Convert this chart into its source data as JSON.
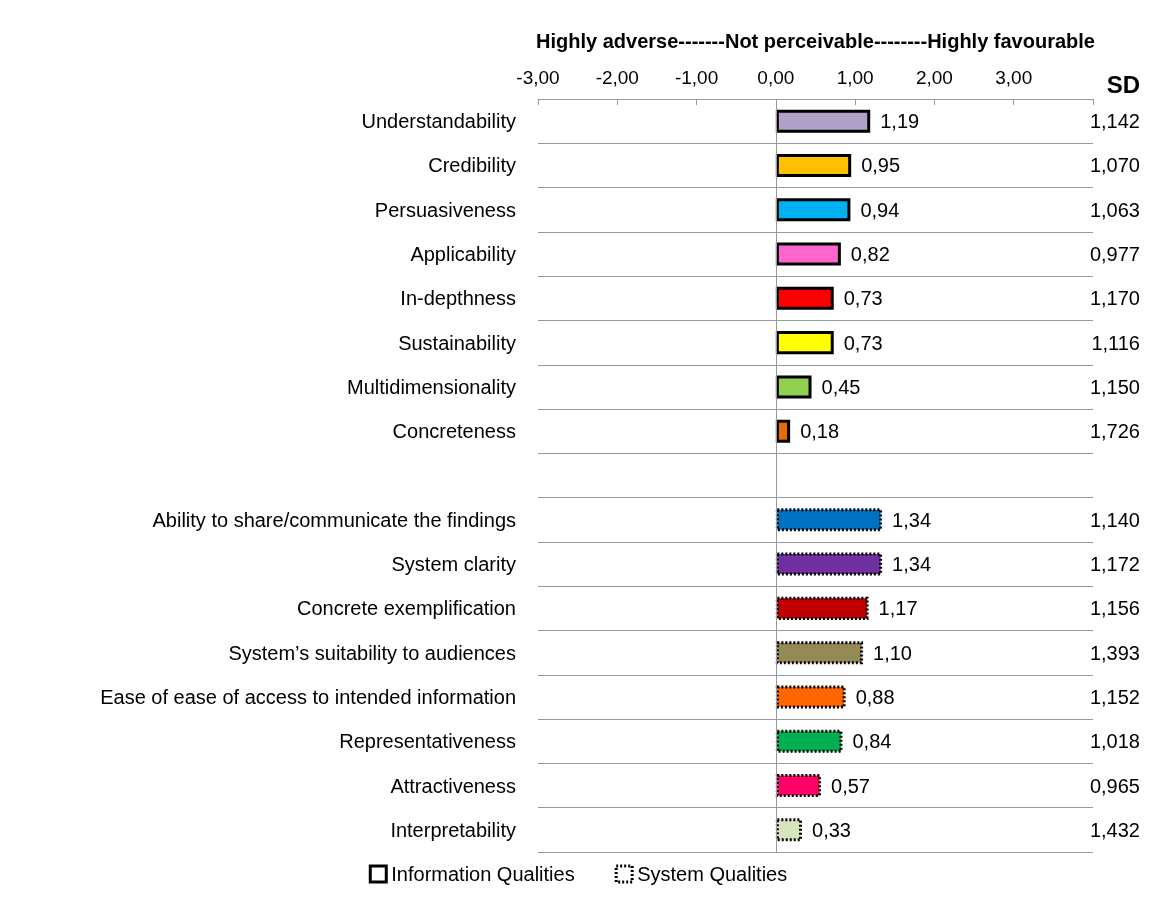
{
  "chart_data": {
    "type": "bar",
    "orientation": "horizontal",
    "xlabel": "Highly adverse-------Not perceivable--------Highly favourable",
    "categories": [
      "Understandability",
      "Credibility",
      "Persuasiveness",
      "Applicability",
      "In-depthness",
      "Sustainability",
      "Multidimensionality",
      "Concreteness",
      null,
      "Ability to share/communicate the findings",
      "System clarity",
      "Concrete exemplification",
      "System’s suitability to audiences",
      "Ease of ease of access to intended information",
      "Representativeness",
      "Attractiveness",
      "Interpretability"
    ],
    "series": [
      {
        "name": "Information Qualities",
        "line_style": "solid",
        "values": [
          1.19,
          0.95,
          0.94,
          0.82,
          0.73,
          0.73,
          0.45,
          0.18,
          null,
          null,
          null,
          null,
          null,
          null,
          null,
          null,
          null
        ],
        "value_labels": [
          "1,19",
          "0,95",
          "0,94",
          "0,82",
          "0,73",
          "0,73",
          "0,45",
          "0,18",
          null,
          null,
          null,
          null,
          null,
          null,
          null,
          null,
          null
        ],
        "colors": [
          "#b1a0c7",
          "#ffc000",
          "#00b0f0",
          "#ff66cc",
          "#ff0000",
          "#ffff00",
          "#92d050",
          "#e26b0a",
          null,
          null,
          null,
          null,
          null,
          null,
          null,
          null,
          null
        ]
      },
      {
        "name": "System Qualities",
        "line_style": "dotted",
        "values": [
          null,
          null,
          null,
          null,
          null,
          null,
          null,
          null,
          null,
          1.34,
          1.34,
          1.17,
          1.1,
          0.88,
          0.84,
          0.57,
          0.33
        ],
        "value_labels": [
          null,
          null,
          null,
          null,
          null,
          null,
          null,
          null,
          null,
          "1,34",
          "1,34",
          "1,17",
          "1,10",
          "0,88",
          "0,84",
          "0,57",
          "0,33"
        ],
        "colors": [
          null,
          null,
          null,
          null,
          null,
          null,
          null,
          null,
          null,
          "#0070c0",
          "#7030a0",
          "#c00000",
          "#948a54",
          "#ff6600",
          "#00b050",
          "#ff0066",
          "#d8e4bc"
        ]
      }
    ],
    "xlim": [
      -3,
      4
    ],
    "xticks": [
      {
        "value": -3,
        "label": "-3,00"
      },
      {
        "value": -2,
        "label": "-2,00"
      },
      {
        "value": -1,
        "label": "-1,00"
      },
      {
        "value": 0,
        "label": "0,00"
      },
      {
        "value": 1,
        "label": "1,00"
      },
      {
        "value": 2,
        "label": "2,00"
      },
      {
        "value": 3,
        "label": "3,00"
      },
      {
        "value": 4,
        "label": null
      }
    ],
    "grid": "y",
    "legend": "bottom",
    "ref_lines": [
      {
        "axis": "x",
        "value": 0,
        "color": "#999999"
      }
    ],
    "annotations": [
      "SD",
      "1,142",
      "1,070",
      "1,063",
      "0,977",
      "1,170",
      "1,116",
      "1,150",
      "1,726",
      "1,140",
      "1,172",
      "1,156",
      "1,393",
      "1,152",
      "1,018",
      "0,965",
      "1,432"
    ]
  }
}
